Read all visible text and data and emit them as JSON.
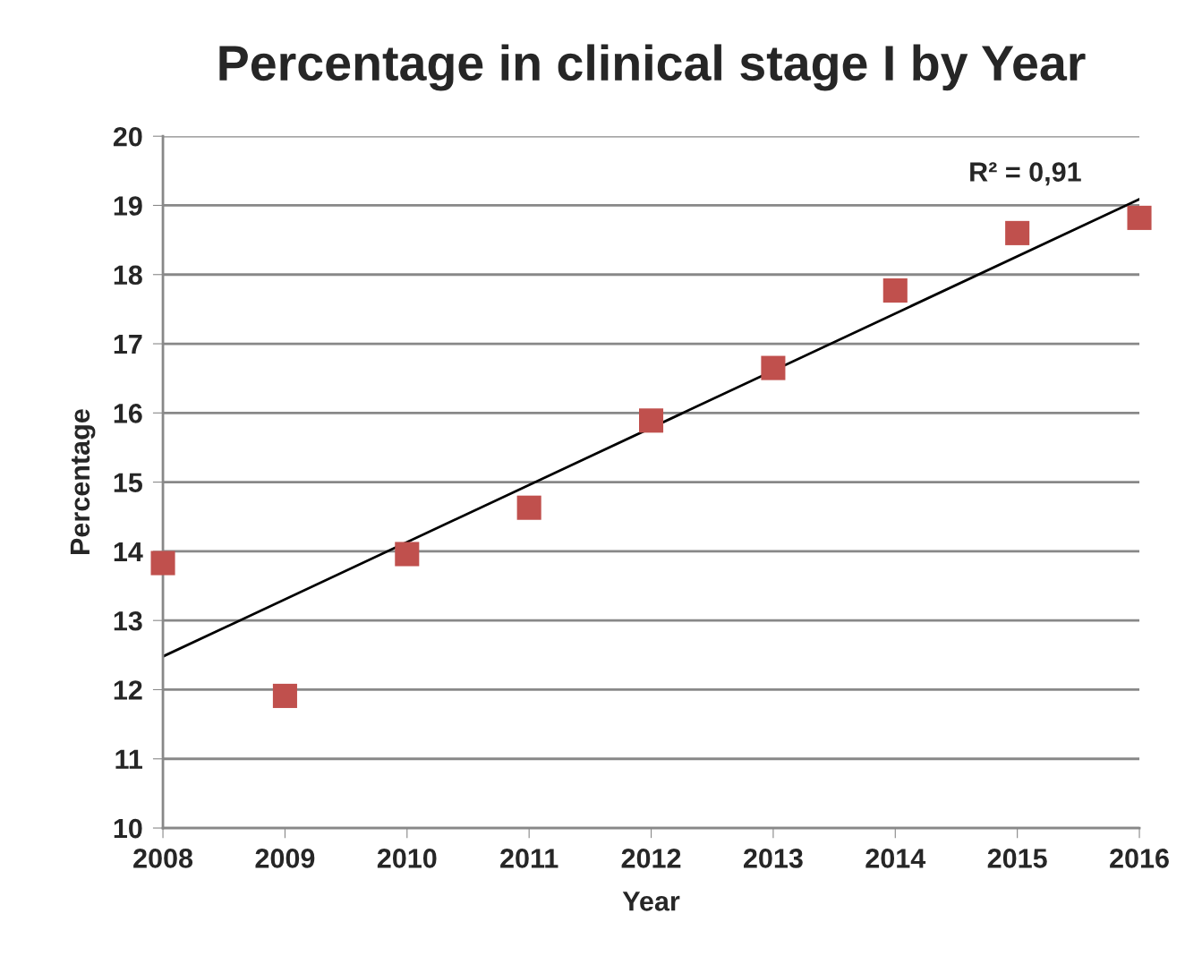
{
  "chart_data": {
    "type": "scatter",
    "title": "Percentage in clinical stage I by Year",
    "xlabel": "Year",
    "ylabel": "Percentage",
    "x": [
      2008,
      2009,
      2010,
      2011,
      2012,
      2013,
      2014,
      2015,
      2016
    ],
    "series": [
      {
        "color": "#c0504d",
        "marker": "square",
        "values": [
          13.83,
          11.91,
          13.96,
          14.63,
          15.89,
          16.65,
          17.77,
          18.6,
          18.82
        ]
      },
      {
        "type": "line",
        "color": "#000000",
        "marker": "none",
        "line_style": "solid",
        "x": [
          2008,
          2016
        ],
        "values": [
          12.48,
          19.09
        ]
      }
    ],
    "annotations": [
      "R² = 0,91"
    ],
    "xlim": [
      2008,
      2016
    ],
    "xticks": [
      2008,
      2009,
      2010,
      2011,
      2012,
      2013,
      2014,
      2015,
      2016
    ],
    "ylim": [
      10,
      20
    ],
    "yticks": [
      10,
      11,
      12,
      13,
      14,
      15,
      16,
      17,
      18,
      19,
      20
    ],
    "grid": "y"
  }
}
